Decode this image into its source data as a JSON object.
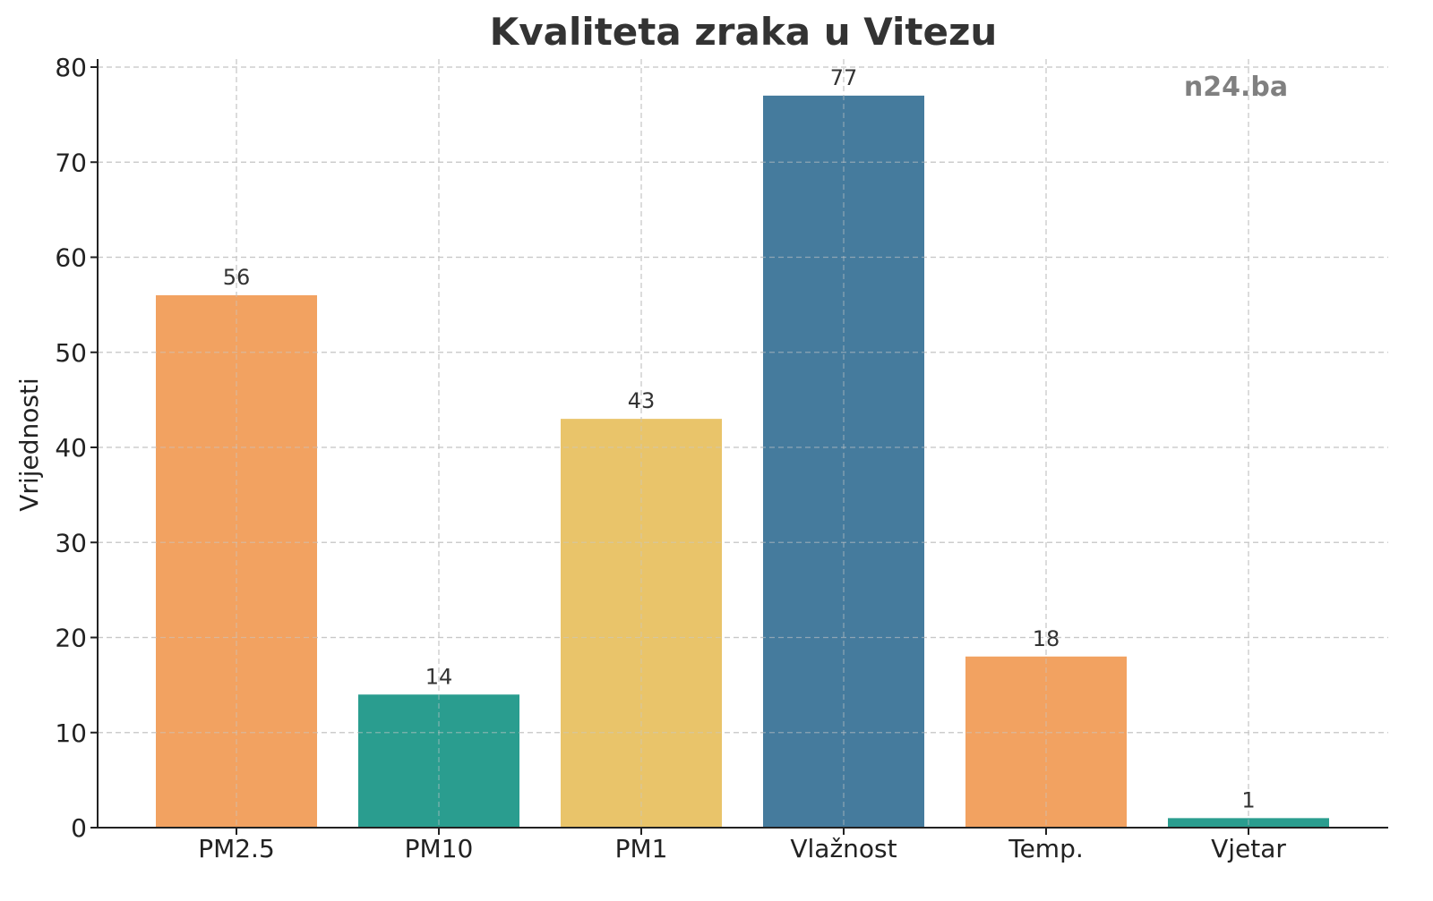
{
  "chart_data": {
    "type": "bar",
    "title": "Kvaliteta zraka u Vitezu",
    "xlabel": "",
    "ylabel": "Vrijednosti",
    "categories": [
      "PM2.5",
      "PM10",
      "PM1",
      "Vlažnost",
      "Temp.",
      "Vjetar"
    ],
    "values": [
      56,
      14,
      43,
      77,
      18,
      1
    ],
    "value_labels": [
      "56",
      "14",
      "43",
      "77",
      "18",
      "1"
    ],
    "colors": [
      "#F2A261",
      "#2A9D8F",
      "#E9C46A",
      "#457B9D",
      "#F2A261",
      "#2A9D8F"
    ],
    "ylim": [
      0,
      80
    ],
    "yticks": [
      0,
      10,
      20,
      30,
      40,
      50,
      60,
      70,
      80
    ],
    "ytick_labels": [
      "0",
      "10",
      "20",
      "30",
      "40",
      "50",
      "60",
      "70",
      "80"
    ],
    "grid": true,
    "watermark": "n24.ba"
  }
}
